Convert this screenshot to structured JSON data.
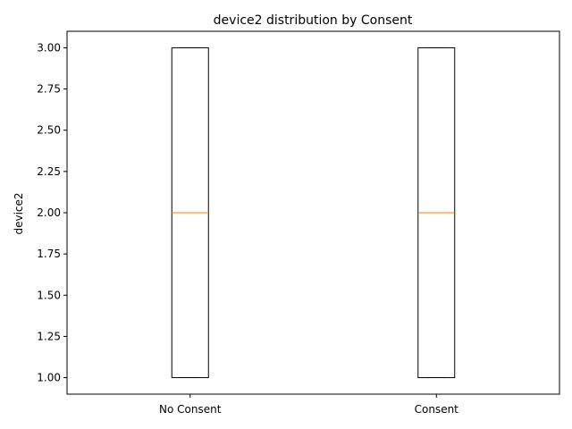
{
  "chart_data": {
    "type": "box",
    "title": "device2 distribution by Consent",
    "xlabel": "",
    "ylabel": "device2",
    "categories": [
      "No Consent",
      "Consent"
    ],
    "boxes": [
      {
        "category": "No Consent",
        "whisker_low": 1.0,
        "q1": 1.0,
        "median": 2.0,
        "q3": 3.0,
        "whisker_high": 3.0
      },
      {
        "category": "Consent",
        "whisker_low": 1.0,
        "q1": 1.0,
        "median": 2.0,
        "q3": 3.0,
        "whisker_high": 3.0
      }
    ],
    "ylim": [
      0.9,
      3.1
    ],
    "yticks": [
      "1.00",
      "1.25",
      "1.50",
      "1.75",
      "2.00",
      "2.25",
      "2.50",
      "2.75",
      "3.00"
    ],
    "grid": false,
    "colors": {
      "box": "#000000",
      "median": "#ff7f0e"
    }
  }
}
